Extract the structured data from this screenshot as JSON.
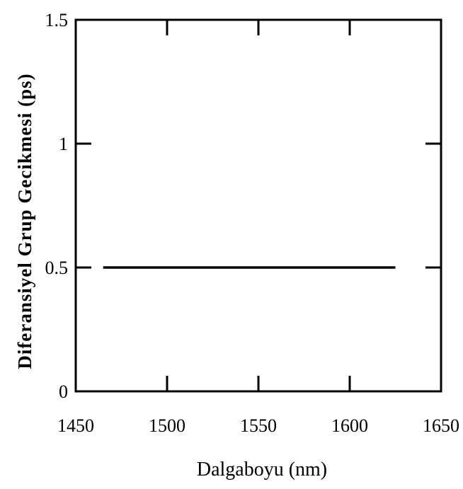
{
  "chart_data": {
    "type": "line",
    "title": "",
    "xlabel": "Dalgaboyu (nm)",
    "ylabel": "Diferansiyel Grup Gecikmesi (ps)",
    "xlim": [
      1450,
      1650
    ],
    "ylim": [
      0,
      1.5
    ],
    "x_ticks": [
      1450,
      1500,
      1550,
      1600,
      1650
    ],
    "x_tick_labels": [
      "1450",
      "1500",
      "1550",
      "1600",
      "1650"
    ],
    "y_ticks": [
      0,
      0.5,
      1,
      1.5
    ],
    "y_tick_labels": [
      "0",
      "0.5",
      "1",
      "1.5"
    ],
    "grid": false,
    "series": [
      {
        "x": [
          1465,
          1625
        ],
        "y": [
          0.5,
          0.5
        ]
      }
    ]
  }
}
